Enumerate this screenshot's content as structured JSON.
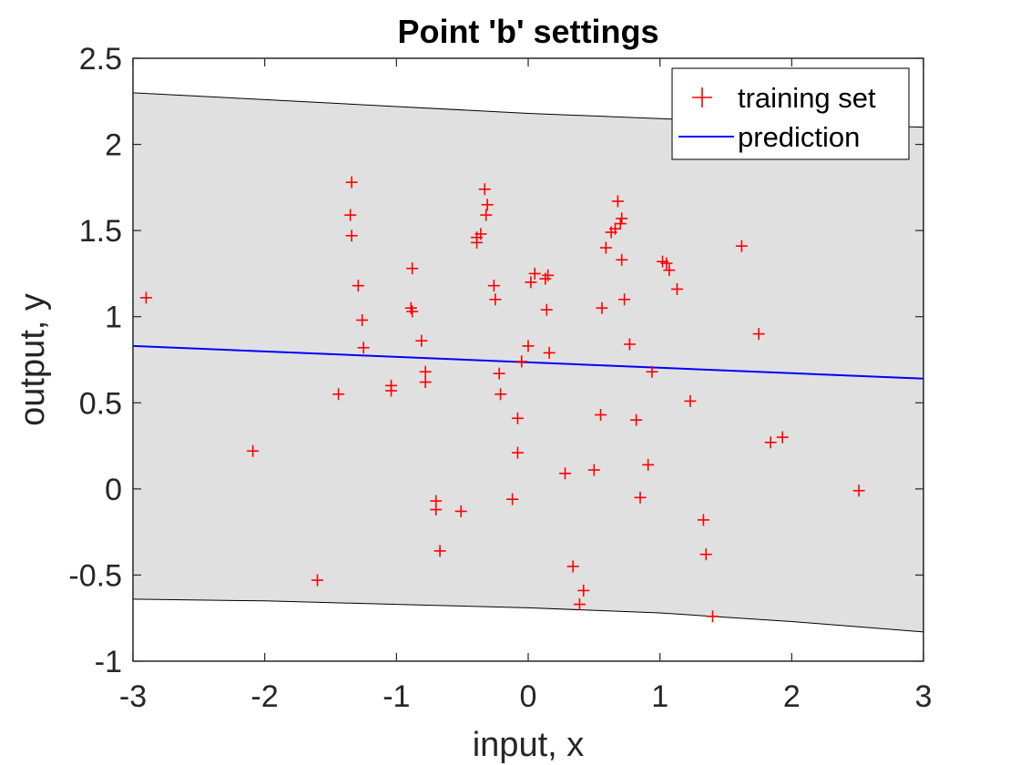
{
  "chart_data": {
    "type": "scatter",
    "title": "Point 'b' settings",
    "xlabel": "input, x",
    "ylabel": "output, y",
    "xlim": [
      -3,
      3
    ],
    "ylim": [
      -1,
      2.5
    ],
    "xticks": [
      -3,
      -2,
      -1,
      0,
      1,
      2,
      3
    ],
    "xtick_labels": [
      "-3",
      "-2",
      "-1",
      "0",
      "1",
      "2",
      "3"
    ],
    "yticks": [
      -1,
      -0.5,
      0,
      0.5,
      1,
      1.5,
      2,
      2.5
    ],
    "ytick_labels": [
      "-1",
      "-0.5",
      "0",
      "0.5",
      "1",
      "1.5",
      "2",
      "2.5"
    ],
    "grid": false,
    "legend_position": "top-right",
    "legend": [
      {
        "label": "training set",
        "marker": "+",
        "color": "#ff0000"
      },
      {
        "label": "prediction",
        "marker": "line",
        "color": "#0000ff"
      }
    ],
    "series": [
      {
        "name": "training set",
        "type": "scatter",
        "marker": "+",
        "color": "#ff0000",
        "points": [
          [
            -2.9,
            1.11
          ],
          [
            -2.09,
            0.22
          ],
          [
            -1.6,
            -0.53
          ],
          [
            -1.44,
            0.55
          ],
          [
            -1.34,
            1.78
          ],
          [
            -1.35,
            1.59
          ],
          [
            -1.34,
            1.47
          ],
          [
            -1.29,
            1.18
          ],
          [
            -1.26,
            0.98
          ],
          [
            -1.25,
            0.82
          ],
          [
            -1.04,
            0.6
          ],
          [
            -1.04,
            0.57
          ],
          [
            -0.88,
            1.28
          ],
          [
            -0.89,
            1.05
          ],
          [
            -0.88,
            1.03
          ],
          [
            -0.81,
            0.86
          ],
          [
            -0.78,
            0.68
          ],
          [
            -0.78,
            0.62
          ],
          [
            -0.7,
            -0.07
          ],
          [
            -0.7,
            -0.12
          ],
          [
            -0.67,
            -0.36
          ],
          [
            -0.51,
            -0.13
          ],
          [
            -0.39,
            1.46
          ],
          [
            -0.39,
            1.43
          ],
          [
            -0.36,
            1.48
          ],
          [
            -0.33,
            1.74
          ],
          [
            -0.31,
            1.65
          ],
          [
            -0.32,
            1.59
          ],
          [
            -0.26,
            1.18
          ],
          [
            -0.25,
            1.1
          ],
          [
            -0.22,
            0.67
          ],
          [
            -0.21,
            0.55
          ],
          [
            -0.12,
            -0.06
          ],
          [
            -0.08,
            0.41
          ],
          [
            -0.08,
            0.21
          ],
          [
            -0.05,
            0.74
          ],
          [
            0.0,
            0.83
          ],
          [
            0.02,
            1.2
          ],
          [
            0.05,
            1.25
          ],
          [
            0.13,
            1.22
          ],
          [
            0.15,
            1.24
          ],
          [
            0.14,
            1.04
          ],
          [
            0.16,
            0.79
          ],
          [
            0.28,
            0.09
          ],
          [
            0.34,
            -0.45
          ],
          [
            0.39,
            -0.67
          ],
          [
            0.42,
            -0.59
          ],
          [
            0.5,
            0.11
          ],
          [
            0.55,
            0.43
          ],
          [
            0.56,
            1.05
          ],
          [
            0.59,
            1.4
          ],
          [
            0.63,
            1.49
          ],
          [
            0.66,
            1.51
          ],
          [
            0.68,
            1.67
          ],
          [
            0.71,
            1.57
          ],
          [
            0.7,
            1.54
          ],
          [
            0.71,
            1.33
          ],
          [
            0.73,
            1.1
          ],
          [
            0.77,
            0.84
          ],
          [
            0.82,
            0.4
          ],
          [
            0.85,
            -0.05
          ],
          [
            0.91,
            0.14
          ],
          [
            0.94,
            0.68
          ],
          [
            1.02,
            1.32
          ],
          [
            1.05,
            1.31
          ],
          [
            1.07,
            1.27
          ],
          [
            1.13,
            1.16
          ],
          [
            1.23,
            0.51
          ],
          [
            1.33,
            -0.18
          ],
          [
            1.35,
            -0.38
          ],
          [
            1.4,
            -0.74
          ],
          [
            1.62,
            1.41
          ],
          [
            1.75,
            0.9
          ],
          [
            1.84,
            0.27
          ],
          [
            1.93,
            0.3
          ],
          [
            2.51,
            -0.01
          ]
        ]
      },
      {
        "name": "prediction",
        "type": "line",
        "color": "#0000ff",
        "x": [
          -3,
          3
        ],
        "y": [
          0.83,
          0.64
        ]
      },
      {
        "name": "confidence band",
        "type": "area",
        "fill": "#e0e0e0",
        "edge": "#000000",
        "x": [
          -3,
          -2,
          -1,
          0,
          1,
          2,
          3
        ],
        "upper": [
          2.3,
          2.26,
          2.22,
          2.18,
          2.15,
          2.12,
          2.1
        ],
        "lower": [
          -0.64,
          -0.65,
          -0.67,
          -0.69,
          -0.72,
          -0.77,
          -0.83
        ]
      }
    ]
  }
}
